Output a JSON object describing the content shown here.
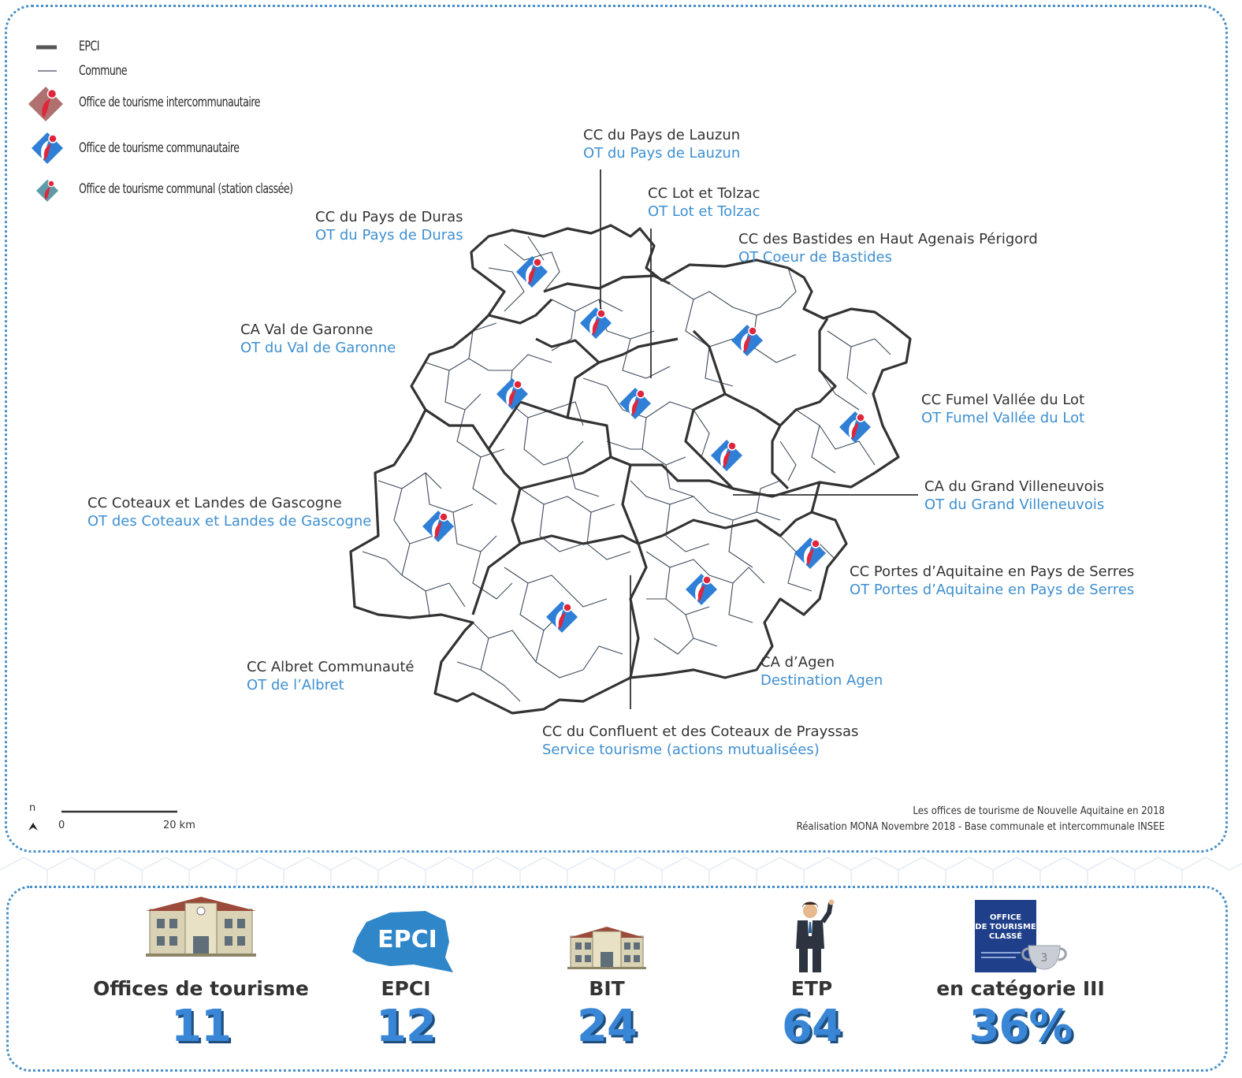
{
  "legend": [
    {
      "label": "EPCI",
      "icon": "epci-boundary-line"
    },
    {
      "label": "Commune",
      "icon": "commune-boundary-line"
    },
    {
      "label": "Office de tourisme intercommunautaire",
      "icon": "intercommunal-office-icon",
      "color": "#b07070"
    },
    {
      "label": "Office de tourisme communautaire",
      "icon": "community-office-icon",
      "color": "#2f7fd6"
    },
    {
      "label": "Office de tourisme communal (station classée)",
      "icon": "communal-office-icon",
      "color": "#5f9aa8"
    }
  ],
  "regions": [
    {
      "name": "CC du Pays de Lauzun",
      "office": "OT du Pays de Lauzun"
    },
    {
      "name": "CC Lot et Tolzac",
      "office": "OT Lot et Tolzac"
    },
    {
      "name": "CC du Pays de Duras",
      "office": "OT du Pays de Duras"
    },
    {
      "name": "CC des Bastides en Haut Agenais Périgord",
      "office": "OT Coeur de Bastides"
    },
    {
      "name": "CA Val de Garonne",
      "office": "OT du Val de Garonne"
    },
    {
      "name": "CC Fumel Vallée du Lot",
      "office": "OT Fumel Vallée du Lot"
    },
    {
      "name": "CA du Grand Villeneuvois",
      "office": "OT du Grand Villeneuvois"
    },
    {
      "name": "CC Coteaux et Landes de Gascogne",
      "office": "OT des Coteaux et Landes de Gascogne"
    },
    {
      "name": "CC Portes d’Aquitaine en Pays de Serres",
      "office": "OT Portes d’Aquitaine en Pays de Serres"
    },
    {
      "name": "CC Albret Communauté",
      "office": "OT de l’Albret"
    },
    {
      "name": "CA d’Agen",
      "office": "Destination Agen"
    },
    {
      "name": "CC du Confluent et des Coteaux de Prayssas",
      "office": "Service tourisme (actions mutualisées)"
    }
  ],
  "scale": {
    "north": "n",
    "start": "0",
    "end": "20 km"
  },
  "credits": {
    "line1": "Les offices de tourisme de Nouvelle Aquitaine en 2018",
    "line2": "Réalisation MONA Novembre 2018 - Base communale et intercommunale INSEE"
  },
  "stats": [
    {
      "caption": "Offices de tourisme",
      "value": "11",
      "icon": "tourism-office-building-icon"
    },
    {
      "caption": "EPCI",
      "value": "12",
      "icon": "epci-badge-icon",
      "badge_text": "EPCI"
    },
    {
      "caption": "BIT",
      "value": "24",
      "icon": "bit-building-icon"
    },
    {
      "caption": "ETP",
      "value": "64",
      "icon": "staff-person-icon"
    },
    {
      "caption": "en catégorie III",
      "value": "36%",
      "icon": "classified-office-plaque-icon",
      "plaque_text": [
        "OFFICE",
        "DE TOURISME",
        "CLASSÉ"
      ],
      "trophy_text": "3"
    }
  ],
  "colors": {
    "accent": "#3a86d6",
    "office_text": "#3f8fd0",
    "border": "#4a90c8",
    "epci_line": "#333333",
    "commune_line": "#3d4a5a"
  }
}
